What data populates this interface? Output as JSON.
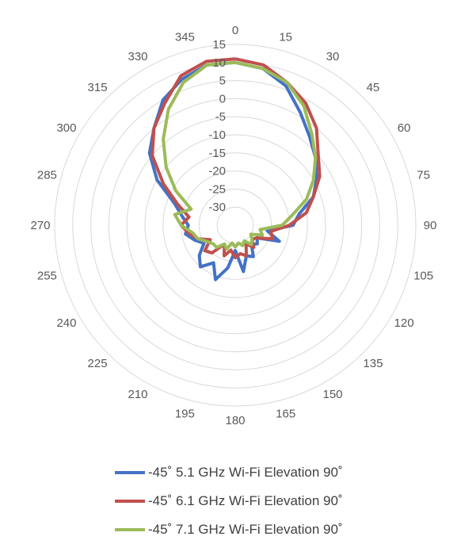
{
  "chart_data": {
    "type": "line",
    "subtype": "polar-radar",
    "title": "",
    "angle_tick_labels": [
      "0",
      "15",
      "30",
      "45",
      "60",
      "75",
      "90",
      "105",
      "120",
      "135",
      "150",
      "165",
      "180",
      "195",
      "210",
      "225",
      "240",
      "255",
      "270",
      "285",
      "300",
      "315",
      "330",
      "345"
    ],
    "radial_tick_labels": [
      "15",
      "10",
      "5",
      "0",
      "-5",
      "-10",
      "-15",
      "-20",
      "-25",
      "-30"
    ],
    "radial_range": [
      -35,
      15
    ],
    "grid": true,
    "legend_position": "bottom",
    "series": [
      {
        "name": "-45˚ 5.1 GHz Wi-Fi Elevation 90˚",
        "color": "#4472C4",
        "angles": [
          0,
          10,
          20,
          30,
          40,
          50,
          60,
          70,
          80,
          90,
          100,
          110,
          120,
          130,
          140,
          150,
          160,
          170,
          180,
          190,
          200,
          210,
          220,
          230,
          240,
          250,
          260,
          270,
          280,
          290,
          300,
          310,
          320,
          330,
          340,
          350
        ],
        "values": [
          10,
          9,
          6,
          1,
          -3,
          -6,
          -9,
          -12,
          -17,
          -19,
          -26,
          -22,
          -28,
          -27,
          -28,
          -25,
          -26,
          -22,
          -28,
          -23,
          -19,
          -23,
          -20,
          -22,
          -25,
          -23,
          -21,
          -22,
          -20,
          -17,
          -10,
          -4,
          0,
          5,
          8,
          10
        ]
      },
      {
        "name": "-45˚ 6.1 GHz Wi-Fi Elevation 90˚",
        "color": "#C0504D",
        "angles": [
          0,
          10,
          20,
          30,
          40,
          50,
          60,
          70,
          80,
          90,
          100,
          110,
          120,
          130,
          140,
          150,
          160,
          170,
          180,
          190,
          200,
          210,
          220,
          230,
          240,
          250,
          260,
          270,
          280,
          290,
          300,
          310,
          320,
          330,
          340,
          350
        ],
        "values": [
          11,
          10,
          7,
          4,
          0,
          -5,
          -8,
          -12,
          -15,
          -20,
          -25,
          -24,
          -28,
          -29,
          -27,
          -29,
          -26,
          -27,
          -26,
          -28,
          -26,
          -29,
          -25,
          -24,
          -27,
          -24,
          -22,
          -20,
          -22,
          -18,
          -12,
          -5,
          0,
          4,
          9,
          11
        ]
      },
      {
        "name": "-45˚ 7.1 GHz Wi-Fi Elevation 90˚",
        "color": "#9BBB59",
        "angles": [
          0,
          10,
          20,
          30,
          40,
          50,
          60,
          70,
          80,
          90,
          100,
          110,
          120,
          130,
          140,
          150,
          160,
          170,
          180,
          190,
          200,
          210,
          220,
          230,
          240,
          250,
          260,
          270,
          280,
          290,
          300,
          310,
          320,
          330,
          340,
          350
        ],
        "values": [
          10,
          9,
          7,
          3,
          -2,
          -6,
          -10,
          -14,
          -19,
          -22,
          -28,
          -27,
          -30,
          -29,
          -28,
          -30,
          -29,
          -30,
          -29,
          -30,
          -28,
          -29,
          -27,
          -27,
          -26,
          -24,
          -23,
          -20,
          -18,
          -22,
          -16,
          -10,
          -4,
          2,
          7,
          10
        ]
      }
    ]
  }
}
